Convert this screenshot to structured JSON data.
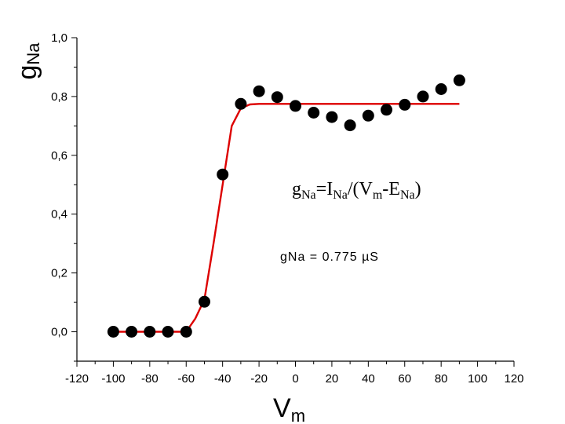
{
  "chart_data": {
    "type": "scatter",
    "title": "",
    "xlabel": {
      "main": "V",
      "sub": "m"
    },
    "ylabel": {
      "main": "g",
      "sub": "Na"
    },
    "xlim": [
      -120,
      120
    ],
    "ylim": [
      -0.1,
      1.0
    ],
    "xticks": [
      -120,
      -100,
      -80,
      -60,
      -40,
      -20,
      0,
      20,
      40,
      60,
      80,
      100,
      120
    ],
    "xtick_labels": [
      "-120",
      "-100",
      "-80",
      "-60",
      "-40",
      "-20",
      "0",
      "20",
      "40",
      "60",
      "80",
      "100",
      "120"
    ],
    "yticks": [
      0.0,
      0.2,
      0.4,
      0.6,
      0.8,
      1.0
    ],
    "ytick_labels": [
      "0,0",
      "0,2",
      "0,4",
      "0,6",
      "0,8",
      "1,0"
    ],
    "grid": false,
    "series": [
      {
        "kind": "points",
        "color": "#000000",
        "x": [
          -100,
          -90,
          -80,
          -70,
          -60,
          -50,
          -40,
          -30,
          -20,
          -10,
          0,
          10,
          20,
          30,
          40,
          50,
          60,
          70,
          80,
          90
        ],
        "y": [
          0.0,
          0.0,
          0.0,
          0.0,
          0.0,
          0.102,
          0.535,
          0.775,
          0.818,
          0.798,
          0.768,
          0.745,
          0.73,
          0.702,
          0.735,
          0.755,
          0.772,
          0.8,
          0.825,
          0.855
        ]
      },
      {
        "kind": "fit-line",
        "color": "#dd0000",
        "x": [
          -100,
          -60,
          -55,
          -50,
          -45,
          -40,
          -35,
          -30,
          -25,
          -20,
          -10,
          0,
          20,
          40,
          60,
          80,
          90
        ],
        "y": [
          0.0,
          0.0,
          0.045,
          0.11,
          0.3,
          0.5,
          0.7,
          0.76,
          0.773,
          0.775,
          0.775,
          0.775,
          0.775,
          0.775,
          0.775,
          0.775,
          0.775
        ]
      }
    ],
    "annotations": {
      "formula": {
        "parts": [
          {
            "text": "g",
            "sub": false
          },
          {
            "text": "Na",
            "sub": true
          },
          {
            "text": "=I",
            "sub": false
          },
          {
            "text": "Na",
            "sub": true
          },
          {
            "text": "/(V",
            "sub": false
          },
          {
            "text": "m",
            "sub": true
          },
          {
            "text": "-E",
            "sub": false
          },
          {
            "text": "Na",
            "sub": true
          },
          {
            "text": ")",
            "sub": false
          }
        ]
      },
      "fit_value": "gNa = 0.775 µS"
    }
  }
}
